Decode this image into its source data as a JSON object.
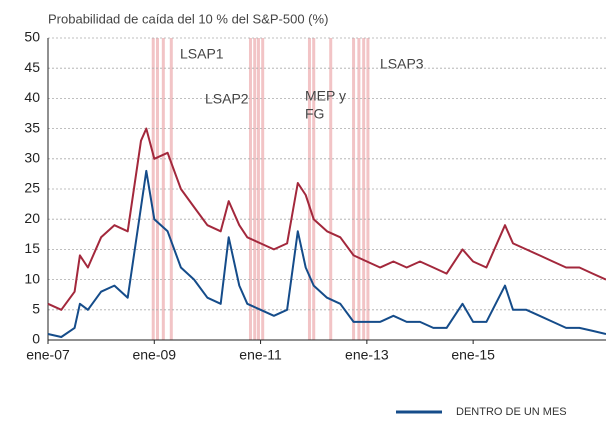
{
  "chart_data": {
    "type": "line",
    "title": "Probabilidad de caída del 10 % del S&P-500 (%)",
    "x": [
      2007,
      2007.25,
      2007.5,
      2007.6,
      2007.75,
      2008,
      2008.25,
      2008.5,
      2008.75,
      2008.85,
      2009,
      2009.25,
      2009.5,
      2009.75,
      2010,
      2010.25,
      2010.4,
      2010.6,
      2010.75,
      2011,
      2011.25,
      2011.5,
      2011.7,
      2011.85,
      2012,
      2012.25,
      2012.5,
      2012.75,
      2013,
      2013.25,
      2013.5,
      2013.75,
      2014,
      2014.25,
      2014.5,
      2014.8,
      2015,
      2015.25,
      2015.6,
      2015.75,
      2016,
      2016.25,
      2016.5,
      2016.75,
      2017,
      2017.25,
      2017.5
    ],
    "series": [
      {
        "color": "#a3283c",
        "values": [
          6,
          5,
          8,
          14,
          12,
          17,
          19,
          18,
          33,
          35,
          30,
          31,
          25,
          22,
          19,
          18,
          23,
          19,
          17,
          16,
          15,
          16,
          26,
          24,
          20,
          18,
          17,
          14,
          13,
          12,
          13,
          12,
          13,
          12,
          11,
          15,
          13,
          12,
          19,
          16,
          15,
          14,
          13,
          12,
          12,
          11,
          10
        ]
      },
      {
        "name": "DENTRO DE UN MES",
        "color": "#154c8a",
        "values": [
          1,
          0.5,
          2,
          6,
          5,
          8,
          9,
          7,
          22,
          28,
          20,
          18,
          12,
          10,
          7,
          6,
          17,
          9,
          6,
          5,
          4,
          5,
          18,
          12,
          9,
          7,
          6,
          3,
          3,
          3,
          4,
          3,
          3,
          2,
          2,
          6,
          3,
          3,
          9,
          5,
          5,
          4,
          3,
          2,
          2,
          1.5,
          1
        ]
      }
    ],
    "shaded_dates": [
      2008.98,
      2009.06,
      2009.17,
      2009.32,
      2010.81,
      2010.89,
      2010.96,
      2011.04,
      2011.92,
      2012.0,
      2012.32,
      2012.75,
      2012.85,
      2012.94,
      2013.02
    ],
    "shade_color": "#f2c4c6",
    "annotations": [
      [
        "LSAP1"
      ],
      [
        "LSAP2"
      ],
      [
        "MEP y",
        "FG"
      ],
      [
        "LSAP3"
      ]
    ],
    "xlim": [
      2007,
      2017.5
    ],
    "xticks": [
      {
        "value": 2007,
        "label": "ene-07"
      },
      {
        "value": 2009,
        "label": "ene-09"
      },
      {
        "value": 2011,
        "label": "ene-11"
      },
      {
        "value": 2013,
        "label": "ene-13"
      },
      {
        "value": 2015,
        "label": "ene-15"
      }
    ],
    "ylim": [
      0,
      50
    ],
    "yticks": [
      0,
      5,
      10,
      15,
      20,
      25,
      30,
      35,
      40,
      45,
      50
    ],
    "grid": true
  }
}
